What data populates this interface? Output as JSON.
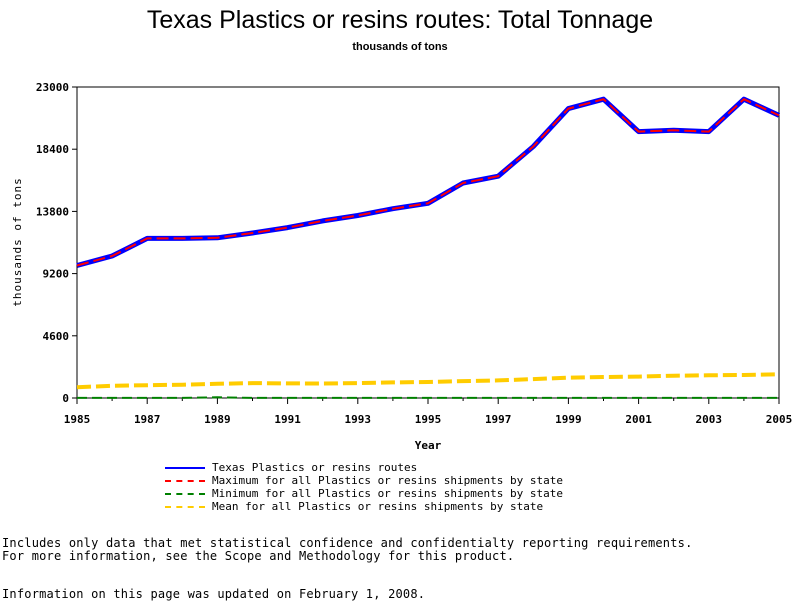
{
  "chart_data": {
    "type": "line",
    "title": "Texas Plastics or resins routes: Total Tonnage",
    "subtitle": "thousands of tons",
    "xlabel": "Year",
    "ylabel": "thousands of tons",
    "xlim": [
      1985,
      2005
    ],
    "ylim": [
      0,
      23000
    ],
    "x_ticks": [
      "1985",
      "1987",
      "1989",
      "1991",
      "1993",
      "1995",
      "1997",
      "1999",
      "2001",
      "2003",
      "2005"
    ],
    "y_ticks": [
      "0",
      "4600",
      "9200",
      "13800",
      "18400",
      "23000"
    ],
    "grid": false,
    "legend_position": "bottom",
    "x": [
      1985,
      1986,
      1987,
      1988,
      1989,
      1990,
      1991,
      1992,
      1993,
      1994,
      1995,
      1996,
      1997,
      1998,
      1999,
      2000,
      2001,
      2002,
      2003,
      2004,
      2005
    ],
    "series": [
      {
        "name": "Texas Plastics or resins routes",
        "color": "#0000ff",
        "dash": "solid",
        "values": [
          9800,
          10500,
          11800,
          11800,
          11850,
          12200,
          12600,
          13100,
          13500,
          14000,
          14400,
          15900,
          16400,
          18600,
          21400,
          22100,
          19700,
          19800,
          19700,
          22100,
          20900
        ]
      },
      {
        "name": "Maximum for all Plastics or resins shipments by state",
        "color": "#ff0000",
        "dash": "dashed",
        "values": [
          9800,
          10500,
          11800,
          11800,
          11850,
          12200,
          12600,
          13100,
          13500,
          14000,
          14400,
          15900,
          16400,
          18600,
          21400,
          22100,
          19700,
          19800,
          19700,
          22100,
          20900
        ]
      },
      {
        "name": "Minimum for all Plastics or resins shipments by state",
        "color": "#008000",
        "dash": "dashed",
        "values": [
          5,
          5,
          8,
          8,
          50,
          10,
          10,
          10,
          10,
          10,
          10,
          10,
          10,
          10,
          10,
          10,
          10,
          10,
          10,
          10,
          10
        ]
      },
      {
        "name": "Mean for all Plastics or resins shipments by state",
        "color": "#ffcc00",
        "dash": "dashed",
        "values": [
          800,
          900,
          950,
          980,
          1050,
          1100,
          1080,
          1070,
          1100,
          1150,
          1180,
          1250,
          1300,
          1400,
          1500,
          1550,
          1580,
          1650,
          1680,
          1700,
          1750
        ]
      }
    ]
  },
  "notes": {
    "line1": "Includes only data that met statistical confidence and confidentialty reporting requirements.",
    "line2": "For more information, see the Scope and Methodology for this product.",
    "line3": "Information on this page was updated on February 1, 2008."
  }
}
